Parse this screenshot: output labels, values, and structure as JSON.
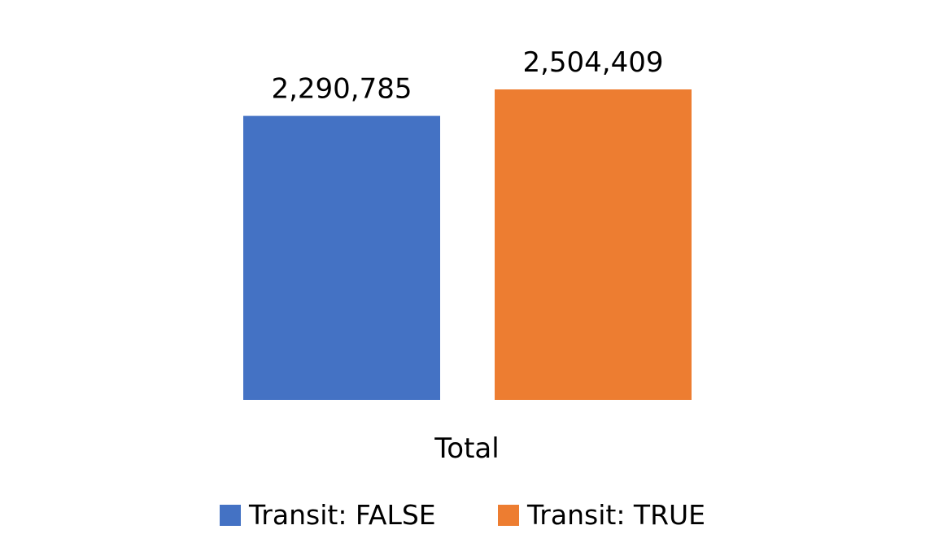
{
  "chart_data": {
    "type": "bar",
    "categories": [
      "Total"
    ],
    "series": [
      {
        "name": "Transit: FALSE",
        "values": [
          2290785
        ],
        "color": "#4472C4"
      },
      {
        "name": "Transit: TRUE",
        "values": [
          2504409
        ],
        "color": "#ED7D31"
      }
    ],
    "data_labels": [
      "2,290,785",
      "2,504,409"
    ],
    "ylim": [
      0,
      3200000
    ],
    "grid": false,
    "legend_position": "bottom"
  }
}
